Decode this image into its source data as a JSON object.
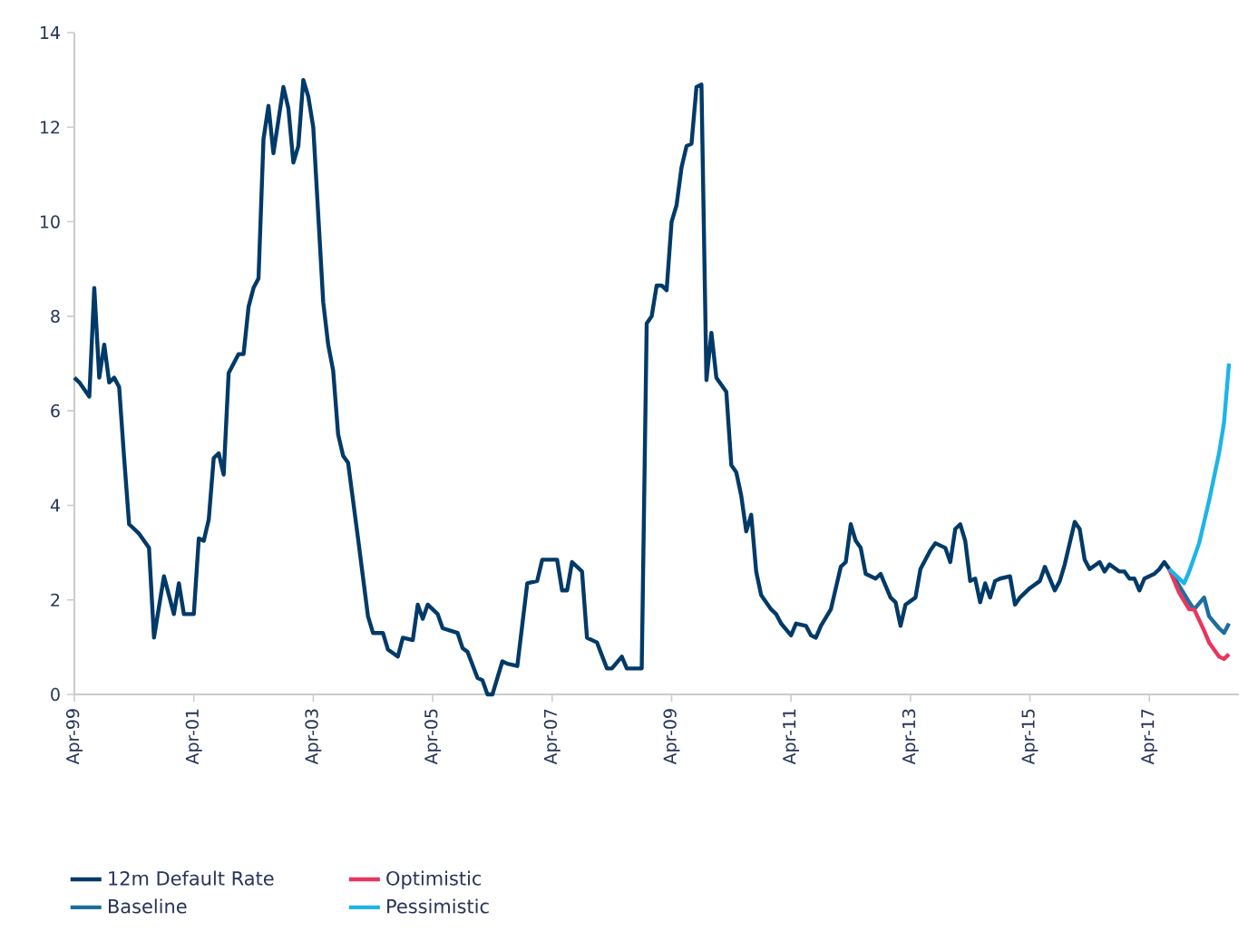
{
  "chart_data": {
    "type": "line",
    "xlim": [
      "1999-04",
      "2018-10"
    ],
    "ylim": [
      0,
      14
    ],
    "yticks": [
      0,
      2,
      4,
      6,
      8,
      10,
      12,
      14
    ],
    "xticks": [
      {
        "value": "1999-04",
        "label": "Apr-99"
      },
      {
        "value": "2001-04",
        "label": "Apr-01"
      },
      {
        "value": "2003-04",
        "label": "Apr-03"
      },
      {
        "value": "2005-04",
        "label": "Apr-05"
      },
      {
        "value": "2007-04",
        "label": "Apr-07"
      },
      {
        "value": "2009-04",
        "label": "Apr-09"
      },
      {
        "value": "2011-04",
        "label": "Apr-11"
      },
      {
        "value": "2013-04",
        "label": "Apr-13"
      },
      {
        "value": "2015-04",
        "label": "Apr-15"
      },
      {
        "value": "2017-04",
        "label": "Apr-17"
      }
    ],
    "legend": "bottom",
    "series": [
      {
        "name": "12m Default Rate",
        "color": "#003a68",
        "x": [
          "1999-04",
          "1999-05",
          "1999-07",
          "1999-08",
          "1999-09",
          "1999-10",
          "1999-11",
          "1999-12",
          "2000-01",
          "2000-02",
          "2000-03",
          "2000-05",
          "2000-07",
          "2000-08",
          "2000-10",
          "2000-12",
          "2001-01",
          "2001-02",
          "2001-04",
          "2001-05",
          "2001-06",
          "2001-07",
          "2001-08",
          "2001-09",
          "2001-10",
          "2001-11",
          "2002-01",
          "2002-02",
          "2002-03",
          "2002-04",
          "2002-05",
          "2002-06",
          "2002-07",
          "2002-08",
          "2002-10",
          "2002-11",
          "2002-12",
          "2003-01",
          "2003-02",
          "2003-03",
          "2003-04",
          "2003-06",
          "2003-07",
          "2003-08",
          "2003-09",
          "2003-10",
          "2003-11",
          "2004-01",
          "2004-03",
          "2004-04",
          "2004-06",
          "2004-07",
          "2004-09",
          "2004-10",
          "2004-12",
          "2005-01",
          "2005-02",
          "2005-03",
          "2005-05",
          "2005-06",
          "2005-09",
          "2005-10",
          "2005-11",
          "2006-01",
          "2006-02",
          "2006-03",
          "2006-04",
          "2006-06",
          "2006-07",
          "2006-09",
          "2006-11",
          "2007-01",
          "2007-02",
          "2007-05",
          "2007-06",
          "2007-07",
          "2007-08",
          "2007-10",
          "2007-11",
          "2008-01",
          "2008-03",
          "2008-04",
          "2008-06",
          "2008-07",
          "2008-10",
          "2008-11",
          "2008-12",
          "2009-01",
          "2009-02",
          "2009-03",
          "2009-04",
          "2009-05",
          "2009-06",
          "2009-07",
          "2009-08",
          "2009-09",
          "2009-10",
          "2009-11",
          "2009-12",
          "2010-01",
          "2010-03",
          "2010-04",
          "2010-05",
          "2010-06",
          "2010-07",
          "2010-08",
          "2010-09",
          "2010-10",
          "2010-12",
          "2011-01",
          "2011-02",
          "2011-04",
          "2011-05",
          "2011-07",
          "2011-08",
          "2011-09",
          "2011-10",
          "2011-12",
          "2012-02",
          "2012-03",
          "2012-04",
          "2012-05",
          "2012-06",
          "2012-07",
          "2012-09",
          "2012-10",
          "2012-11",
          "2012-12",
          "2013-01",
          "2013-02",
          "2013-03",
          "2013-05",
          "2013-06",
          "2013-08",
          "2013-09",
          "2013-11",
          "2013-12",
          "2014-01",
          "2014-02",
          "2014-03",
          "2014-04",
          "2014-05",
          "2014-06",
          "2014-07",
          "2014-08",
          "2014-09",
          "2014-10",
          "2014-12",
          "2015-01",
          "2015-02",
          "2015-04",
          "2015-06",
          "2015-07",
          "2015-09",
          "2015-10",
          "2015-11",
          "2016-01",
          "2016-02",
          "2016-03",
          "2016-04",
          "2016-06",
          "2016-07",
          "2016-08",
          "2016-10",
          "2016-11",
          "2016-12",
          "2017-01",
          "2017-02",
          "2017-03",
          "2017-05",
          "2017-06",
          "2017-07",
          "2017-08"
        ],
        "values": [
          6.7,
          6.6,
          6.3,
          8.6,
          6.7,
          7.4,
          6.6,
          6.7,
          6.5,
          5.0,
          3.6,
          3.4,
          3.1,
          1.2,
          2.5,
          1.7,
          2.35,
          1.7,
          1.7,
          3.3,
          3.25,
          3.7,
          5.0,
          5.1,
          4.65,
          6.8,
          7.2,
          7.2,
          8.2,
          8.6,
          8.8,
          11.75,
          12.45,
          11.45,
          12.85,
          12.4,
          11.25,
          11.6,
          13.0,
          12.65,
          12.0,
          8.3,
          7.4,
          6.85,
          5.5,
          5.05,
          4.9,
          3.3,
          1.65,
          1.3,
          1.3,
          0.95,
          0.8,
          1.2,
          1.15,
          1.9,
          1.6,
          1.9,
          1.7,
          1.4,
          1.3,
          0.98,
          0.9,
          0.35,
          0.3,
          0.0,
          0.0,
          0.7,
          0.65,
          0.6,
          2.35,
          2.4,
          2.85,
          2.85,
          2.2,
          2.2,
          2.8,
          2.6,
          1.2,
          1.1,
          0.55,
          0.55,
          0.8,
          0.55,
          0.55,
          7.85,
          8.0,
          8.65,
          8.65,
          8.55,
          10.0,
          10.35,
          11.15,
          11.6,
          11.65,
          12.85,
          12.9,
          6.65,
          7.65,
          6.7,
          6.4,
          4.85,
          4.7,
          4.2,
          3.45,
          3.8,
          2.6,
          2.1,
          1.8,
          1.7,
          1.5,
          1.25,
          1.5,
          1.45,
          1.25,
          1.2,
          1.45,
          1.8,
          2.7,
          2.8,
          3.6,
          3.25,
          3.1,
          2.55,
          2.45,
          2.55,
          2.3,
          2.05,
          1.95,
          1.45,
          1.9,
          2.05,
          2.65,
          3.05,
          3.2,
          3.1,
          2.8,
          3.5,
          3.6,
          3.25,
          2.4,
          2.45,
          1.95,
          2.35,
          2.05,
          2.4,
          2.45,
          2.5,
          1.9,
          2.05,
          2.25,
          2.4,
          2.7,
          2.2,
          2.4,
          2.75,
          3.65,
          3.5,
          2.85,
          2.65,
          2.8,
          2.6,
          2.75,
          2.6,
          2.6,
          2.45,
          2.45,
          2.2,
          2.45,
          2.55,
          2.65,
          2.8,
          2.65
        ]
      },
      {
        "name": "Baseline",
        "color": "#1b6f9e",
        "x": [
          "2017-08",
          "2017-10",
          "2017-12",
          "2018-01",
          "2018-03",
          "2018-04",
          "2018-06",
          "2018-07",
          "2018-08"
        ],
        "values": [
          2.65,
          2.3,
          1.95,
          1.8,
          2.05,
          1.65,
          1.4,
          1.3,
          1.5
        ]
      },
      {
        "name": "Optimistic",
        "color": "#e8365d",
        "x": [
          "2017-08",
          "2017-10",
          "2017-12",
          "2018-01",
          "2018-03",
          "2018-04",
          "2018-06",
          "2018-07",
          "2018-08"
        ],
        "values": [
          2.65,
          2.15,
          1.8,
          1.8,
          1.35,
          1.1,
          0.8,
          0.75,
          0.85
        ]
      },
      {
        "name": "Pessimistic",
        "color": "#1db4e8",
        "x": [
          "2017-08",
          "2017-11",
          "2017-12",
          "2018-02",
          "2018-04",
          "2018-06",
          "2018-07",
          "2018-08"
        ],
        "values": [
          2.65,
          2.35,
          2.6,
          3.2,
          4.1,
          5.1,
          5.75,
          7.0
        ]
      }
    ]
  }
}
